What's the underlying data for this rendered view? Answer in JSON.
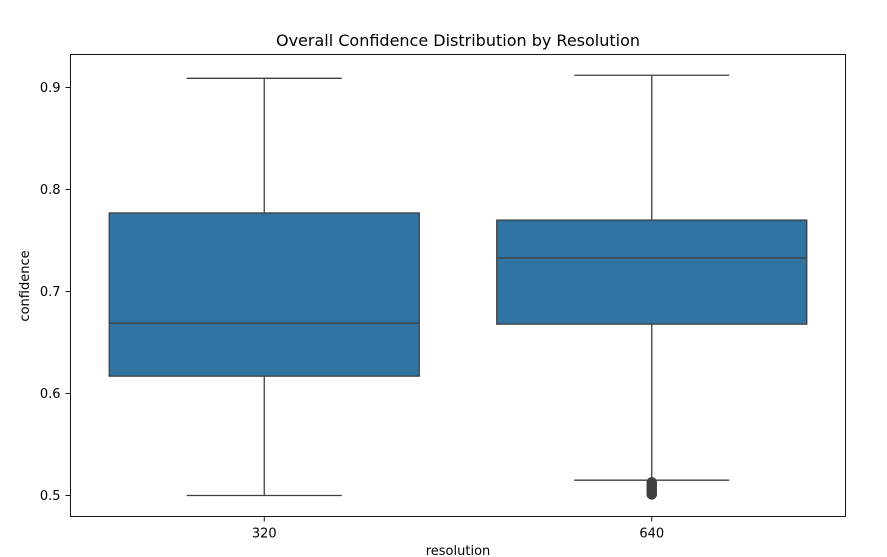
{
  "chart_data": {
    "type": "box",
    "title": "Overall Confidence Distribution by Resolution",
    "xlabel": "resolution",
    "ylabel": "confidence",
    "categories": [
      "320",
      "640"
    ],
    "ylim": [
      0.48,
      0.925
    ],
    "yticks": [
      0.5,
      0.6,
      0.7,
      0.8,
      0.9
    ],
    "ytick_labels": [
      "0.5",
      "0.6",
      "0.7",
      "0.8",
      "0.9"
    ],
    "grid": false,
    "legend": "none",
    "color": "#3274a1",
    "series": [
      {
        "category": "320",
        "whisker_low": 0.5,
        "q1": 0.617,
        "median": 0.669,
        "q3": 0.777,
        "whisker_high": 0.909,
        "outliers": []
      },
      {
        "category": "640",
        "whisker_low": 0.515,
        "q1": 0.668,
        "median": 0.733,
        "q3": 0.77,
        "whisker_high": 0.912,
        "outliers": [
          0.501,
          0.503,
          0.505,
          0.507,
          0.509,
          0.511,
          0.513
        ]
      }
    ]
  }
}
